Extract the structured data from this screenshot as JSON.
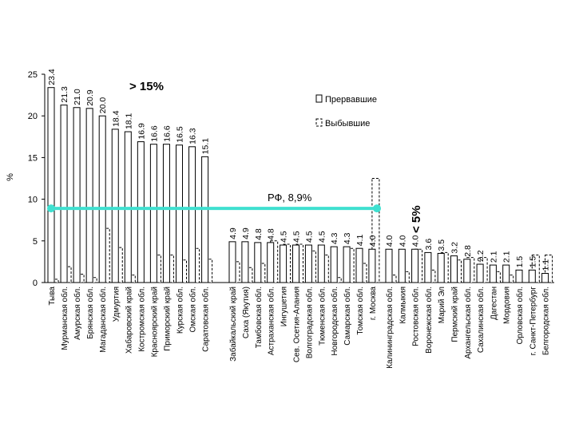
{
  "chart_data": {
    "type": "bar",
    "ylabel": "%",
    "ylim": [
      0,
      25
    ],
    "yticks": [
      0,
      5,
      10,
      15,
      20,
      25
    ],
    "grid": false,
    "legend_position": "right",
    "categories": [
      "Тыва",
      "Мурманская обл.",
      "Амурская обл.",
      "Брянская обл.",
      "Магаданская обл.",
      "Удмуртия",
      "Хабаровский край",
      "Костромская обл.",
      "Красноярский край",
      "Приморский край",
      "Курская обл.",
      "Омская обл.",
      "Саратовская обл.",
      "Забайкальский край",
      "Саха (Якутия)",
      "Тамбовская обл.",
      "Астраханская обл.",
      "Ингушетия",
      "Сев. Осетия-Алания",
      "Волгоградская обл.",
      "Тюменская обл.",
      "Новгородская обл.",
      "Самарская обл.",
      "Томская обл.",
      "г. Москва",
      "Калининградская обл.",
      "Калмыкия",
      "Ростовская обл.",
      "Воронежская обл.",
      "Марий Эл",
      "Пермский край",
      "Архангельская обл.",
      "Сахалинская обл.",
      "Дагестан",
      "Мордовия",
      "Орловская обл.",
      "г. Санкт-Петербург",
      "Белгородская обл."
    ],
    "series": [
      {
        "name": "Прервавшие",
        "color": "#ffffff",
        "values": [
          23.4,
          21.3,
          21.0,
          20.9,
          20.0,
          18.4,
          18.1,
          16.9,
          16.6,
          16.6,
          16.5,
          16.3,
          15.1,
          4.9,
          4.9,
          4.8,
          4.8,
          4.5,
          4.5,
          4.5,
          4.5,
          4.3,
          4.3,
          4.1,
          4.0,
          4.0,
          4.0,
          4.0,
          3.6,
          3.5,
          3.2,
          2.8,
          2.2,
          2.1,
          2.1,
          1.5,
          1.5,
          1.1
        ],
        "value_labels": [
          "23.4",
          "21.3",
          "21.0",
          "20.9",
          "20.0",
          "18.4",
          "18.1",
          "16.9",
          "16.6",
          "16.6",
          "16.5",
          "16.3",
          "15.1",
          "4.9",
          "4.9",
          "4.8",
          "4.8",
          "4.5",
          "4.5",
          "4.5",
          "4.5",
          "4.3",
          "4.3",
          "4.1",
          "4.0",
          "4.0",
          "4.0",
          "4.0",
          "3.6",
          "3.5",
          "3.2",
          "2.8",
          "2.2",
          "2.1",
          "2.1",
          "1.5",
          "1.5",
          "1.1"
        ]
      },
      {
        "name": "Выбывшие",
        "color": "#ffffff",
        "values": [
          0.4,
          1.9,
          1.0,
          0.6,
          6.5,
          4.2,
          0.9,
          0,
          3.3,
          3.3,
          2.7,
          4.1,
          2.8,
          2.5,
          1.8,
          2.3,
          5.0,
          4.6,
          4.6,
          3.8,
          3.3,
          0.6,
          4.1,
          2.3,
          12.5,
          0.9,
          1.3,
          4.0,
          1.5,
          3.6,
          2.7,
          3.0,
          3.0,
          1.3,
          0.9,
          0,
          3.3,
          3.3
        ]
      }
    ],
    "reference_line": {
      "label": "РФ, 8,9%",
      "value": 8.9,
      "color": "#3fe0d0"
    },
    "annotations": [
      {
        "text": "> 15%"
      },
      {
        "text": "< 5%"
      }
    ]
  }
}
